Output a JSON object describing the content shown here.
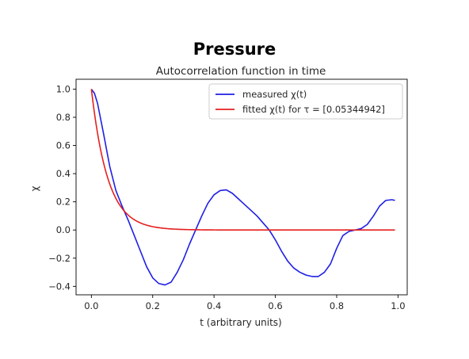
{
  "page": {
    "title": "Pressure"
  },
  "chart_data": {
    "type": "line",
    "title": "Autocorrelation function in time",
    "xlabel": "t (arbitrary units)",
    "ylabel": "χ",
    "xlim": [
      -0.05,
      1.03
    ],
    "ylim": [
      -0.46,
      1.07
    ],
    "x_ticks": [
      0.0,
      0.2,
      0.4,
      0.6,
      0.8,
      1.0
    ],
    "x_tick_labels": [
      "0.0",
      "0.2",
      "0.4",
      "0.6",
      "0.8",
      "1.0"
    ],
    "y_ticks": [
      1.0,
      0.8,
      0.6,
      0.4,
      0.2,
      0.0,
      -0.2,
      -0.4
    ],
    "y_tick_labels": [
      "1.0",
      "0.8",
      "0.6",
      "0.4",
      "0.2",
      "0.0",
      "−0.2",
      "−0.4"
    ],
    "legend_position": "top-right",
    "grid": false,
    "series": [
      {
        "name": "measured χ(t)",
        "color": "#1f1fe6",
        "x": [
          0.0,
          0.01,
          0.02,
          0.04,
          0.06,
          0.08,
          0.1,
          0.12,
          0.14,
          0.16,
          0.18,
          0.2,
          0.22,
          0.24,
          0.26,
          0.28,
          0.3,
          0.32,
          0.34,
          0.36,
          0.38,
          0.4,
          0.42,
          0.44,
          0.46,
          0.48,
          0.5,
          0.52,
          0.54,
          0.56,
          0.58,
          0.6,
          0.62,
          0.64,
          0.66,
          0.68,
          0.7,
          0.72,
          0.74,
          0.76,
          0.78,
          0.8,
          0.82,
          0.84,
          0.86,
          0.88,
          0.9,
          0.92,
          0.94,
          0.96,
          0.98,
          0.99
        ],
        "y": [
          1.0,
          0.97,
          0.9,
          0.68,
          0.45,
          0.28,
          0.17,
          0.07,
          -0.04,
          -0.15,
          -0.26,
          -0.34,
          -0.38,
          -0.39,
          -0.37,
          -0.3,
          -0.21,
          -0.1,
          0.0,
          0.1,
          0.19,
          0.25,
          0.28,
          0.285,
          0.26,
          0.22,
          0.18,
          0.14,
          0.1,
          0.05,
          0.0,
          -0.07,
          -0.15,
          -0.22,
          -0.27,
          -0.3,
          -0.32,
          -0.33,
          -0.33,
          -0.3,
          -0.24,
          -0.13,
          -0.04,
          -0.01,
          0.0,
          0.01,
          0.04,
          0.1,
          0.17,
          0.21,
          0.215,
          0.21
        ]
      },
      {
        "name": "fitted χ(t) for τ = [0.05344942]",
        "color": "#e61f1f",
        "tau": 0.05344942,
        "x_range": [
          0.0,
          0.99
        ]
      }
    ]
  }
}
